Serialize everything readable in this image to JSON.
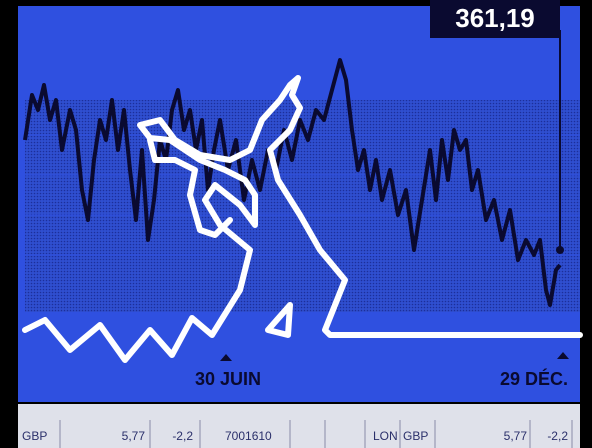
{
  "price": "361,19",
  "dates": [
    "30 JUIN",
    "29 DÉC."
  ],
  "ticker": [
    "GBP",
    "5,77",
    "-2,2",
    "7001610",
    "LON",
    "GBP",
    "5,77",
    "-2,2"
  ]
}
